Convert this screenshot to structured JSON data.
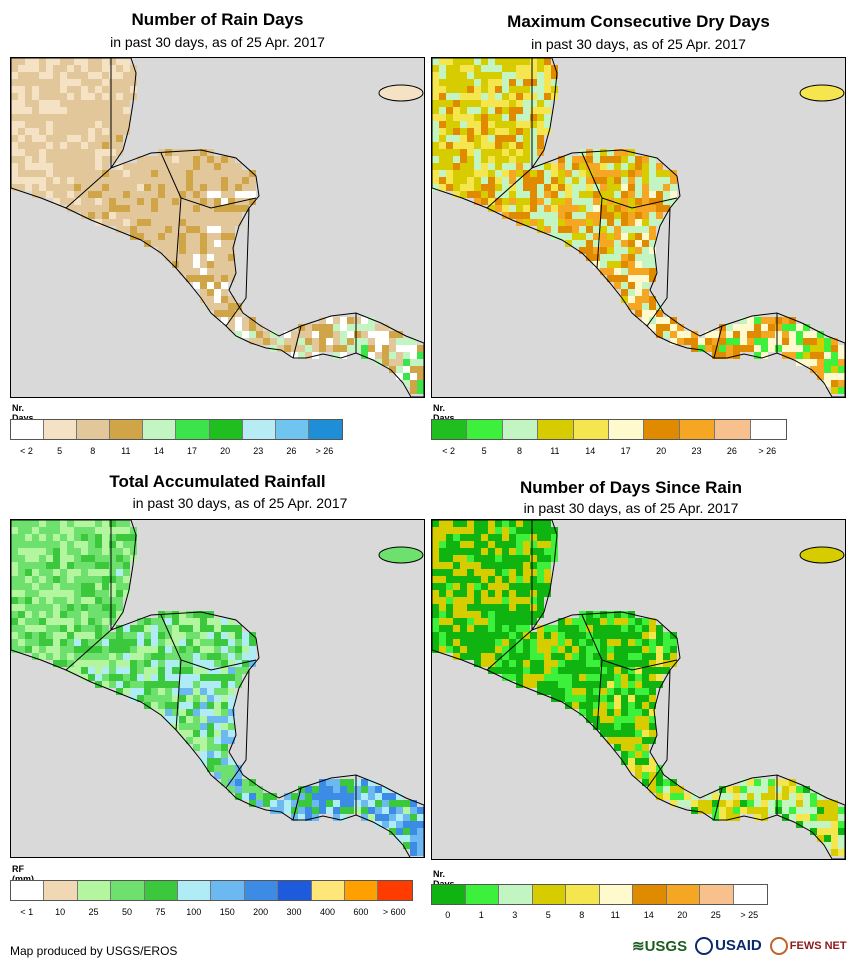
{
  "panels": [
    {
      "title": "Number of Rain Days",
      "subtitle": "in past 30 days, as of 25 Apr. 2017",
      "legend_title": "Nr. Days",
      "legend_colors": [
        "#ffffff",
        "#f5e1c3",
        "#e2c79b",
        "#cfa548",
        "#c3f5c3",
        "#3ce34a",
        "#1fbf1f",
        "#b7ecf5",
        "#6fc4f0",
        "#1e8fd6"
      ],
      "legend_ticks": [
        "< 2",
        "5",
        "8",
        "11",
        "14",
        "17",
        "20",
        "23",
        "26",
        "> 26"
      ],
      "map_palette": [
        "#f5e1c3",
        "#f5e1c3",
        "#e2c79b",
        "#e2c79b",
        "#e2c79b",
        "#cfa548",
        "#ffffff",
        "#c3f5c3",
        "#3ce34a"
      ]
    },
    {
      "title": "Maximum Consecutive Dry Days",
      "subtitle": "in past 30 days, as of 25 Apr. 2017",
      "legend_title": "Nr. Days",
      "legend_colors": [
        "#1fbf1f",
        "#3cf03c",
        "#c3f5c3",
        "#d7cc00",
        "#f5e650",
        "#fffacd",
        "#e08a00",
        "#f5a623",
        "#f8c08c",
        "#ffffff"
      ],
      "legend_ticks": [
        "< 2",
        "5",
        "8",
        "11",
        "14",
        "17",
        "20",
        "23",
        "26",
        "> 26"
      ],
      "map_palette": [
        "#d7cc00",
        "#f5e650",
        "#d7cc00",
        "#c3f5c3",
        "#e08a00",
        "#f5a623",
        "#fffacd",
        "#3cf03c",
        "#d7cc00"
      ]
    },
    {
      "title": "Total Accumulated Rainfall",
      "subtitle": "in past 30 days, as of 25 Apr. 2017",
      "legend_title": "RF (mm)",
      "legend_colors": [
        "#ffffff",
        "#f0d8b4",
        "#b4f5a0",
        "#6ee06e",
        "#3cc83c",
        "#b0ecf5",
        "#6cb8f0",
        "#3c8ce6",
        "#1e5adc",
        "#ffe678",
        "#ffa000",
        "#ff3c00"
      ],
      "legend_ticks": [
        "< 1",
        "10",
        "25",
        "50",
        "75",
        "100",
        "150",
        "200",
        "300",
        "400",
        "600",
        "> 600"
      ],
      "map_palette": [
        "#b4f5a0",
        "#6ee06e",
        "#b4f5a0",
        "#6ee06e",
        "#3cc83c",
        "#b0ecf5",
        "#6cb8f0",
        "#3c8ce6",
        "#b4f5a0"
      ]
    },
    {
      "title": "Number of Days Since Rain",
      "subtitle": "in past 30 days, as of 25 Apr. 2017",
      "legend_title": "Nr. Days",
      "legend_colors": [
        "#10b410",
        "#3cf03c",
        "#c3f5c3",
        "#d7cc00",
        "#f5e650",
        "#fffacd",
        "#e08a00",
        "#f5a623",
        "#f8c08c",
        "#ffffff"
      ],
      "legend_ticks": [
        "0",
        "1",
        "3",
        "5",
        "8",
        "11",
        "14",
        "20",
        "25",
        "> 25"
      ],
      "map_palette": [
        "#d7cc00",
        "#d7cc00",
        "#10b410",
        "#10b410",
        "#3cf03c",
        "#d7cc00",
        "#f5e650",
        "#c3f5c3",
        "#10b410"
      ]
    }
  ],
  "footer": "Map produced by USGS/EROS",
  "logos": {
    "usgs": "USGS",
    "usaid": "USAID",
    "fewsnet": "FEWS NET"
  }
}
